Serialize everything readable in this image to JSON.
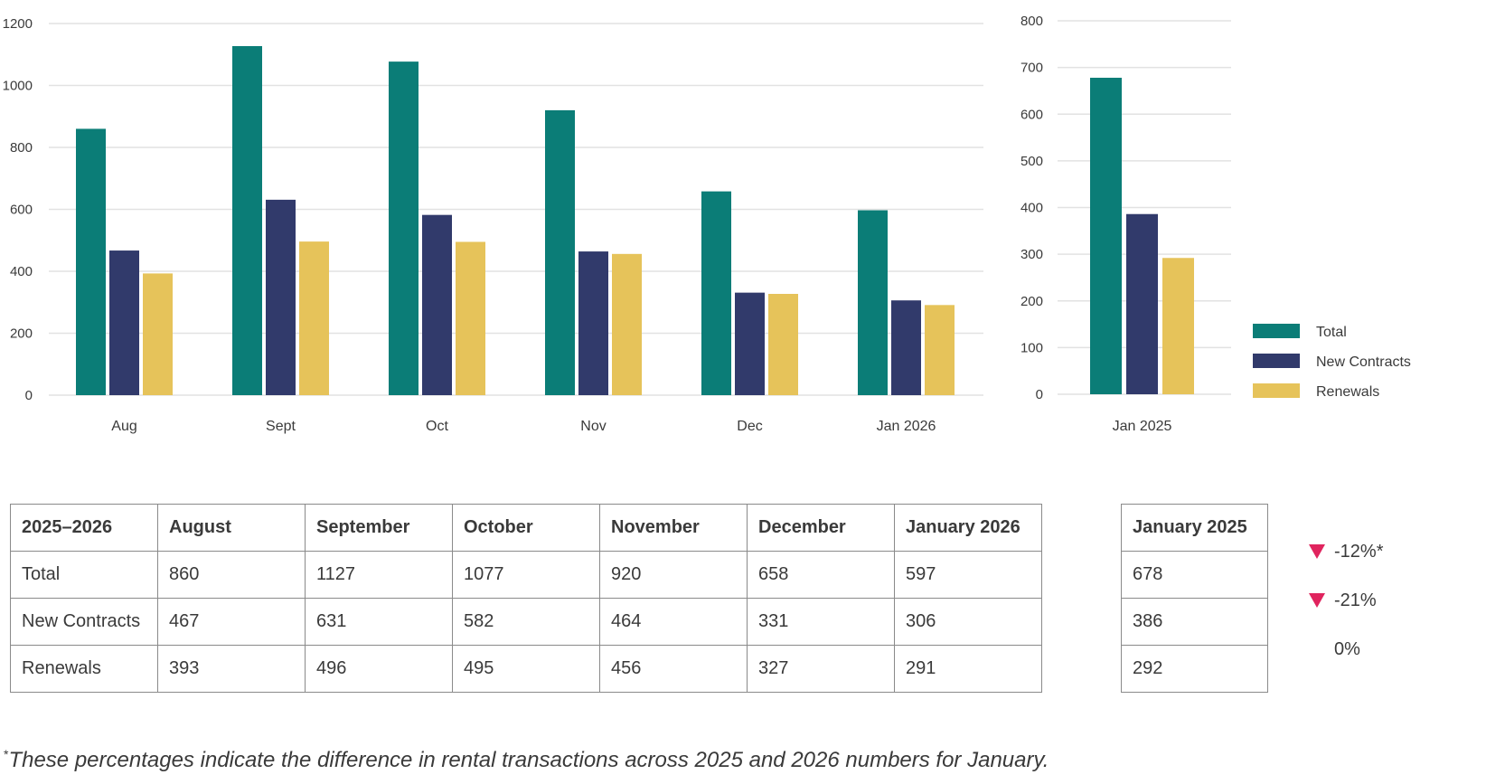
{
  "colors": {
    "total": "#0b7d77",
    "new_contracts": "#313a6b",
    "renewals": "#e6c35a",
    "down_arrow": "#e0245e",
    "grid": "#e2e2e2"
  },
  "chart_data": [
    {
      "type": "bar",
      "categories": [
        "Aug",
        "Sept",
        "Oct",
        "Nov",
        "Dec",
        "Jan 2026"
      ],
      "series": [
        {
          "name": "Total",
          "values": [
            860,
            1127,
            1077,
            920,
            658,
            597
          ]
        },
        {
          "name": "New Contracts",
          "values": [
            467,
            631,
            582,
            464,
            331,
            306
          ]
        },
        {
          "name": "Renewals",
          "values": [
            393,
            496,
            495,
            456,
            327,
            291
          ]
        }
      ],
      "ylim": [
        0,
        1200
      ],
      "yticks": [
        0,
        200,
        400,
        600,
        800,
        1000,
        1200
      ],
      "grid": true
    },
    {
      "type": "bar",
      "categories": [
        "Jan 2025"
      ],
      "series": [
        {
          "name": "Total",
          "values": [
            678
          ]
        },
        {
          "name": "New Contracts",
          "values": [
            386
          ]
        },
        {
          "name": "Renewals",
          "values": [
            292
          ]
        }
      ],
      "ylim": [
        0,
        800
      ],
      "yticks": [
        0,
        100,
        200,
        300,
        400,
        500,
        600,
        700,
        800
      ],
      "grid": true,
      "legend": "right"
    }
  ],
  "legend": [
    "Total",
    "New Contracts",
    "Renewals"
  ],
  "table": {
    "header": [
      "2025–2026",
      "August",
      "September",
      "October",
      "November",
      "December",
      "January 2026"
    ],
    "rows": [
      [
        "Total",
        "860",
        "1127",
        "1077",
        "920",
        "658",
        "597"
      ],
      [
        "New Contracts",
        "467",
        "631",
        "582",
        "464",
        "331",
        "306"
      ],
      [
        "Renewals",
        "393",
        "496",
        "495",
        "456",
        "327",
        "291"
      ]
    ]
  },
  "side_table": {
    "header": "January 2025",
    "rows": [
      "678",
      "386",
      "292"
    ]
  },
  "changes": [
    {
      "value": "-12%*",
      "direction": "down"
    },
    {
      "value": "-21%",
      "direction": "down"
    },
    {
      "value": "0%",
      "direction": "none"
    }
  ],
  "footnote": {
    "marker": "*",
    "text": "These percentages indicate the difference in rental transactions across 2025 and 2026 numbers for January."
  }
}
